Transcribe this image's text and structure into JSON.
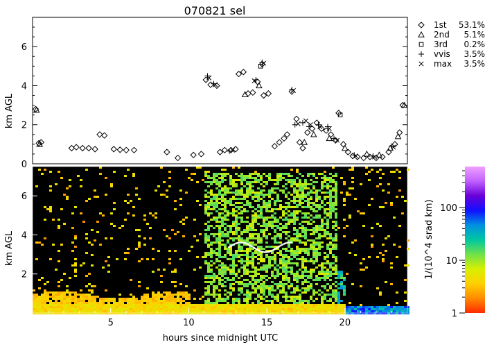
{
  "chart_data": [
    {
      "type": "scatter",
      "title": "070821 sel",
      "ylabel": "km AGL",
      "xlim": [
        0,
        24
      ],
      "ylim": [
        0,
        7.5
      ],
      "yticks": [
        0,
        2,
        4,
        6
      ],
      "legend_position": "right",
      "series": [
        {
          "name": "1st",
          "percent": "53.1%",
          "marker": "diamond",
          "points": [
            [
              0.2,
              2.8
            ],
            [
              0.4,
              1.05
            ],
            [
              0.55,
              1.1
            ],
            [
              2.5,
              0.8
            ],
            [
              2.8,
              0.85
            ],
            [
              3.2,
              0.8
            ],
            [
              3.6,
              0.8
            ],
            [
              4.0,
              0.75
            ],
            [
              4.3,
              1.5
            ],
            [
              4.6,
              1.45
            ],
            [
              5.2,
              0.75
            ],
            [
              5.6,
              0.72
            ],
            [
              6.0,
              0.7
            ],
            [
              6.5,
              0.7
            ],
            [
              8.6,
              0.6
            ],
            [
              9.3,
              0.3
            ],
            [
              10.3,
              0.45
            ],
            [
              10.8,
              0.5
            ],
            [
              11.1,
              4.3
            ],
            [
              11.4,
              4.05
            ],
            [
              11.8,
              4.0
            ],
            [
              12.0,
              0.6
            ],
            [
              12.3,
              0.7
            ],
            [
              12.7,
              0.7
            ],
            [
              13.0,
              0.75
            ],
            [
              13.2,
              4.6
            ],
            [
              13.5,
              4.7
            ],
            [
              13.8,
              3.6
            ],
            [
              14.1,
              3.65
            ],
            [
              14.4,
              4.2
            ],
            [
              14.7,
              5.1
            ],
            [
              14.8,
              3.5
            ],
            [
              15.1,
              3.6
            ],
            [
              15.5,
              0.9
            ],
            [
              15.8,
              1.1
            ],
            [
              16.1,
              1.3
            ],
            [
              16.3,
              1.5
            ],
            [
              16.6,
              3.7
            ],
            [
              16.9,
              2.3
            ],
            [
              17.1,
              1.1
            ],
            [
              17.3,
              0.8
            ],
            [
              17.6,
              1.6
            ],
            [
              17.9,
              1.8
            ],
            [
              18.2,
              2.1
            ],
            [
              18.5,
              1.8
            ],
            [
              18.8,
              1.7
            ],
            [
              19.1,
              1.5
            ],
            [
              19.4,
              1.2
            ],
            [
              19.6,
              2.6
            ],
            [
              19.9,
              1.0
            ],
            [
              20.2,
              0.6
            ],
            [
              20.5,
              0.4
            ],
            [
              20.8,
              0.35
            ],
            [
              21.2,
              0.3
            ],
            [
              21.6,
              0.35
            ],
            [
              22.0,
              0.3
            ],
            [
              22.4,
              0.35
            ],
            [
              22.8,
              0.6
            ],
            [
              23.2,
              1.0
            ],
            [
              23.5,
              1.6
            ],
            [
              23.7,
              3.0
            ]
          ]
        },
        {
          "name": "2nd",
          "percent": "5.1%",
          "marker": "triangle",
          "points": [
            [
              0.25,
              2.75
            ],
            [
              0.45,
              1.0
            ],
            [
              13.6,
              3.55
            ],
            [
              14.5,
              4.0
            ],
            [
              17.4,
              1.1
            ],
            [
              18.0,
              1.5
            ],
            [
              19.0,
              1.3
            ],
            [
              20.0,
              0.8
            ],
            [
              21.4,
              0.5
            ],
            [
              22.2,
              0.45
            ],
            [
              22.9,
              0.8
            ],
            [
              23.4,
              1.4
            ],
            [
              23.8,
              3.0
            ]
          ]
        },
        {
          "name": "3rd",
          "percent": "0.2%",
          "marker": "square",
          "points": [
            [
              14.6,
              5.0
            ],
            [
              19.7,
              2.5
            ]
          ]
        },
        {
          "name": "vvis",
          "percent": "3.5%",
          "marker": "plus",
          "points": [
            [
              11.2,
              4.5
            ],
            [
              11.6,
              4.1
            ],
            [
              12.6,
              0.65
            ],
            [
              14.3,
              4.3
            ],
            [
              14.7,
              5.2
            ],
            [
              16.6,
              3.8
            ],
            [
              16.8,
              2.0
            ],
            [
              17.3,
              2.1
            ],
            [
              17.7,
              1.9
            ],
            [
              18.3,
              2.0
            ],
            [
              18.9,
              1.9
            ],
            [
              19.3,
              1.3
            ],
            [
              20.6,
              0.45
            ],
            [
              21.8,
              0.4
            ],
            [
              23.0,
              0.9
            ]
          ]
        },
        {
          "name": "max",
          "percent": "3.5%",
          "marker": "x",
          "points": [
            [
              11.3,
              4.4
            ],
            [
              11.7,
              4.05
            ],
            [
              12.8,
              0.7
            ],
            [
              14.2,
              4.25
            ],
            [
              14.8,
              5.15
            ],
            [
              16.7,
              3.75
            ],
            [
              17.0,
              2.05
            ],
            [
              17.5,
              2.2
            ],
            [
              17.8,
              2.0
            ],
            [
              18.4,
              1.9
            ],
            [
              19.0,
              1.8
            ],
            [
              19.5,
              1.2
            ],
            [
              20.7,
              0.4
            ],
            [
              21.9,
              0.35
            ],
            [
              23.1,
              0.85
            ]
          ]
        }
      ]
    },
    {
      "type": "heatmap",
      "ylabel": "km AGL",
      "xlabel": "hours since midnight UTC",
      "xlim": [
        0,
        24
      ],
      "ylim": [
        0,
        7.5
      ],
      "xticks": [
        5,
        10,
        15,
        20
      ],
      "yticks": [
        2,
        4,
        6
      ],
      "colorbar": {
        "label": "1/(10^4 srad km)",
        "scale": "log",
        "range": [
          1,
          600
        ],
        "ticks": [
          1,
          10,
          100
        ],
        "colors": [
          "#ff2a00",
          "#ff8a00",
          "#ffd000",
          "#d8f000",
          "#6fe14a",
          "#00c8a0",
          "#0090e0",
          "#1010ff",
          "#6a00d8",
          "#c060ff",
          "#f0a0ff"
        ]
      }
    }
  ]
}
